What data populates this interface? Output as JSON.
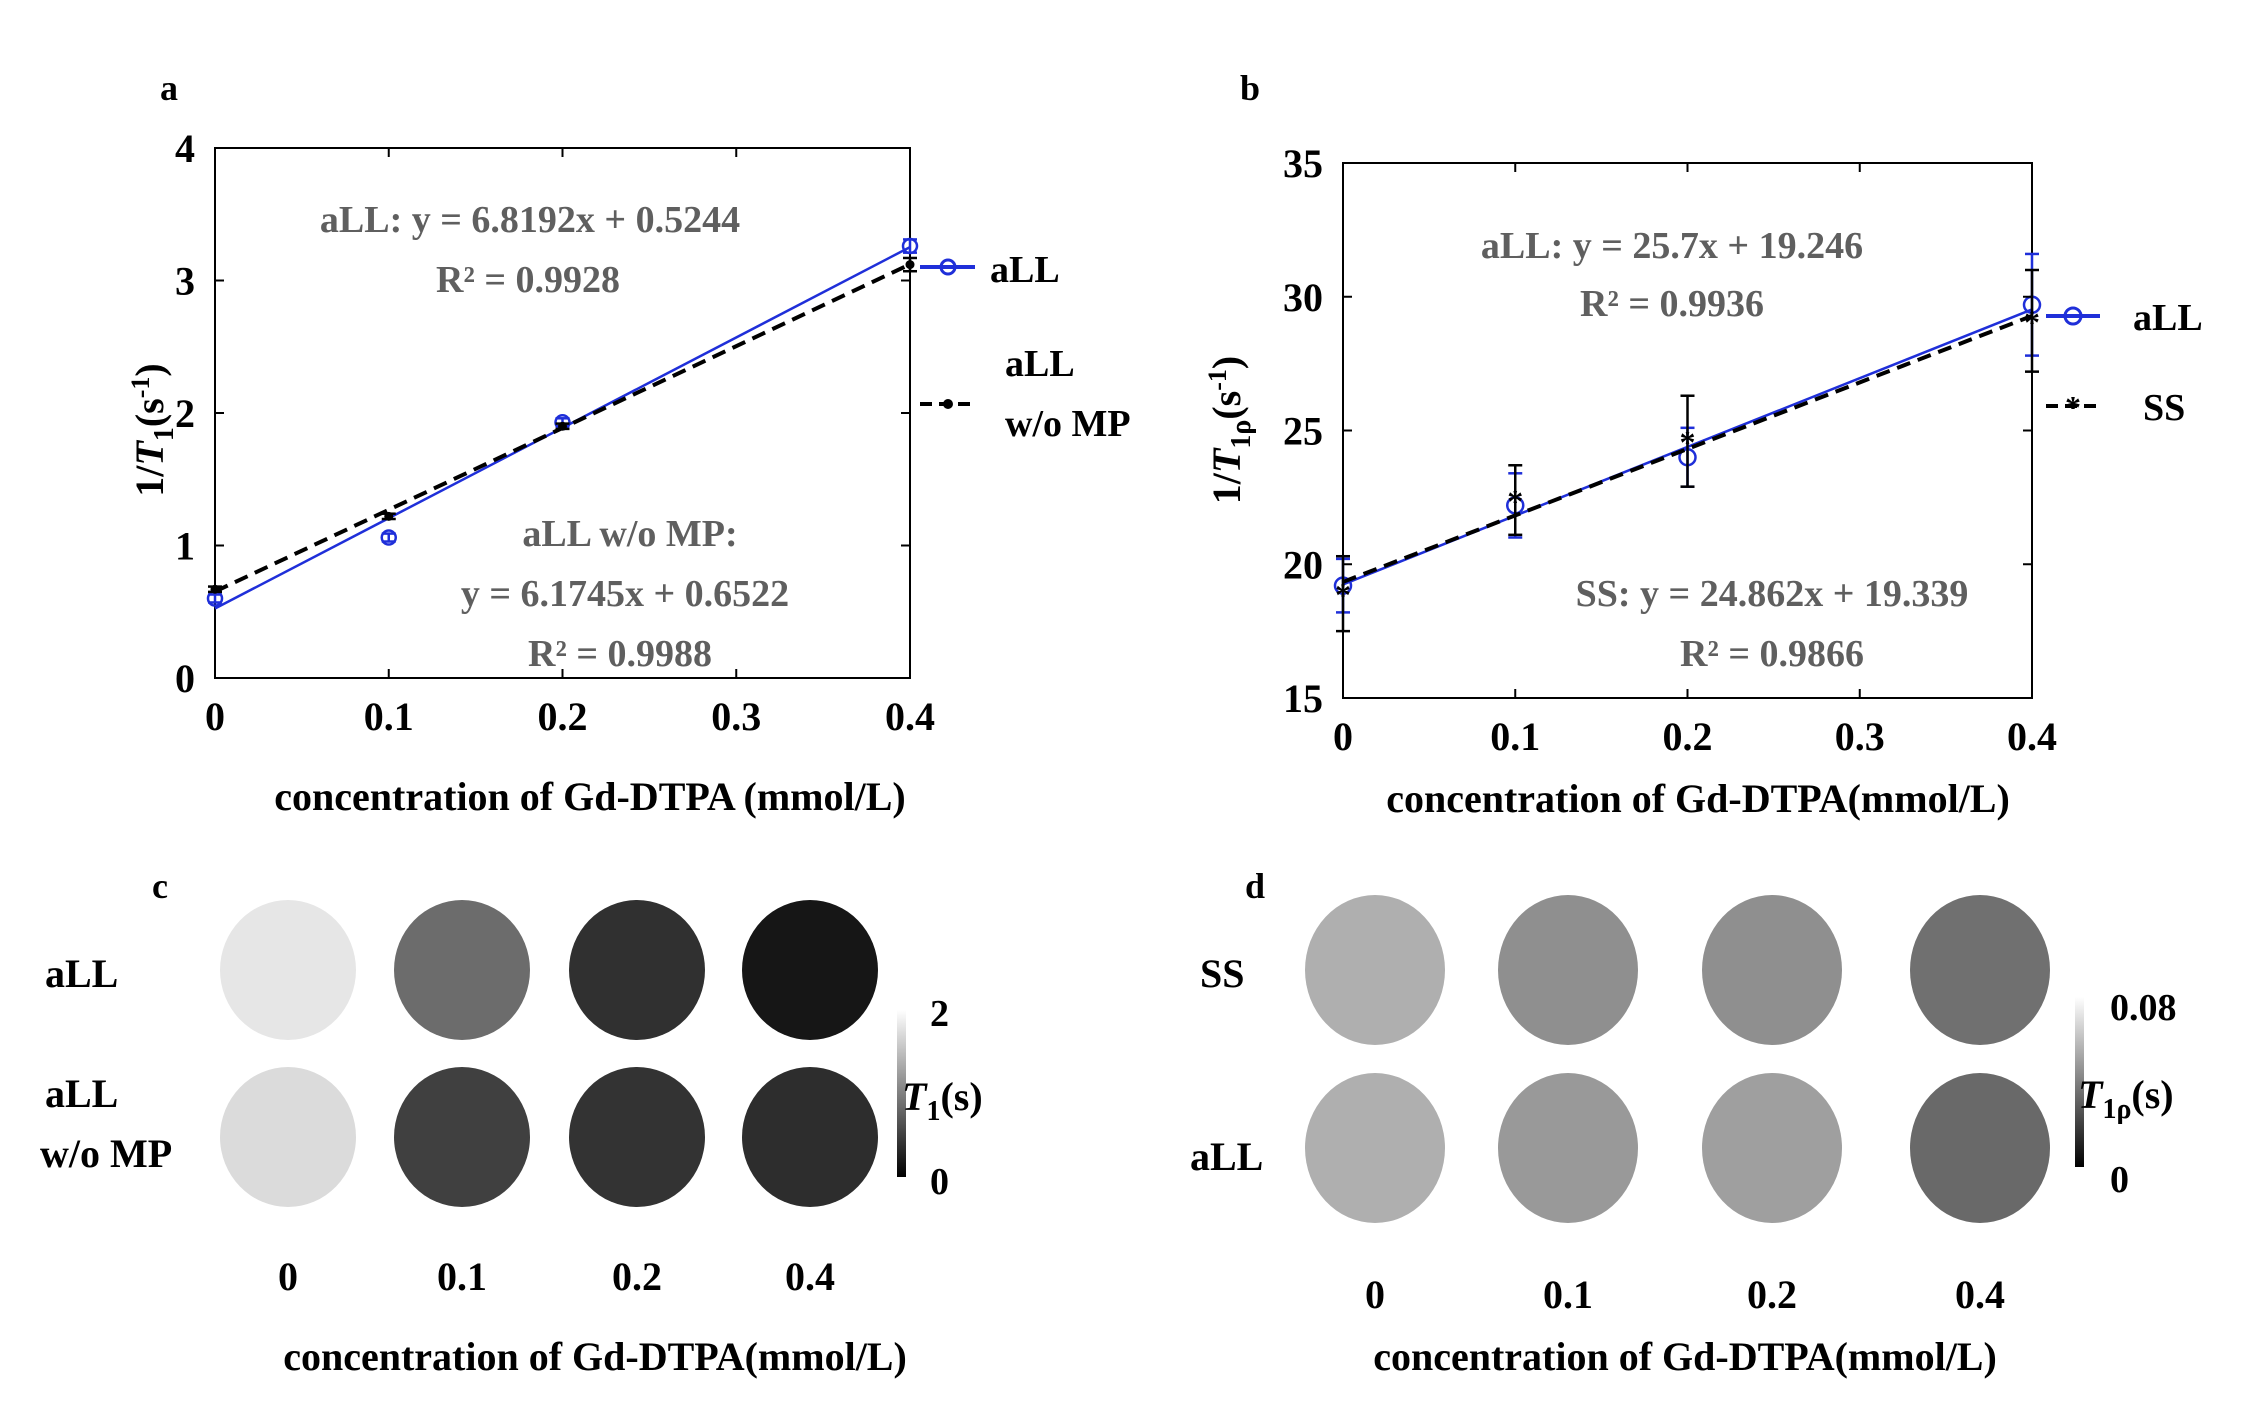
{
  "panel_labels": {
    "a": "a",
    "b": "b",
    "c": "c",
    "d": "d"
  },
  "colors": {
    "aLL": "#1f2fd9",
    "other": "#000000",
    "eq_text": "#5f5f5f",
    "axis": "#000000"
  },
  "chart_data": [
    {
      "id": "a",
      "type": "line",
      "ylabel": {
        "prefix": "1/",
        "var": "T",
        "sub": "1",
        "unit_pre": "(s",
        "unit_sup": "-1",
        "unit_post": ")"
      },
      "xlabel": "concentration of Gd-DTPA (mmol/L)",
      "xlim": [
        0,
        0.4
      ],
      "ylim": [
        0,
        4
      ],
      "xticks": [
        0,
        0.1,
        0.2,
        0.3,
        0.4
      ],
      "yticks": [
        0,
        1,
        2,
        3,
        4
      ],
      "xticklabels": [
        "0",
        "0.1",
        "0.2",
        "0.3",
        "0.4"
      ],
      "yticklabels": [
        "0",
        "1",
        "2",
        "3",
        "4"
      ],
      "series": [
        {
          "name": "aLL",
          "legend_lines": [
            "aLL"
          ],
          "x": [
            0,
            0.1,
            0.2,
            0.4
          ],
          "y": [
            0.6,
            1.06,
            1.93,
            3.26
          ],
          "err": [
            0.03,
            0.03,
            0.03,
            0.05
          ],
          "fit": {
            "slope": 6.8192,
            "intercept": 0.5244
          },
          "marker": "circle",
          "dash": "solid"
        },
        {
          "name": "aLL w/o MP",
          "legend_lines": [
            "aLL",
            "w/o MP"
          ],
          "x": [
            0,
            0.1,
            0.2,
            0.4
          ],
          "y": [
            0.67,
            1.22,
            1.9,
            3.12
          ],
          "err": [
            0.02,
            0.02,
            0.02,
            0.05
          ],
          "fit": {
            "slope": 6.1745,
            "intercept": 0.6522
          },
          "marker": "dot",
          "dash": "dashed"
        }
      ],
      "annotations": [
        {
          "id": "a-eq1",
          "text": "aLL: y = 6.8192x + 0.5244"
        },
        {
          "id": "a-r1",
          "text": "R² = 0.9928"
        },
        {
          "id": "a-eq2a",
          "text": "aLL w/o MP:"
        },
        {
          "id": "a-eq2b",
          "text": "y = 6.1745x + 0.6522"
        },
        {
          "id": "a-r2",
          "text": "R² = 0.9988"
        }
      ]
    },
    {
      "id": "b",
      "type": "line",
      "ylabel": {
        "prefix": "1/",
        "var": "T",
        "sub": "1ρ",
        "unit_pre": "(s",
        "unit_sup": "-1",
        "unit_post": ")"
      },
      "xlabel": "concentration of Gd-DTPA(mmol/L)",
      "xlim": [
        0,
        0.4
      ],
      "ylim": [
        15,
        35
      ],
      "xticks": [
        0,
        0.1,
        0.2,
        0.3,
        0.4
      ],
      "yticks": [
        15,
        20,
        25,
        30,
        35
      ],
      "xticklabels": [
        "0",
        "0.1",
        "0.2",
        "0.3",
        "0.4"
      ],
      "yticklabels": [
        "15",
        "20",
        "25",
        "30",
        "35"
      ],
      "series": [
        {
          "name": "aLL",
          "legend_lines": [
            "aLL"
          ],
          "x": [
            0,
            0.1,
            0.2,
            0.4
          ],
          "y": [
            19.2,
            22.2,
            24.0,
            29.7
          ],
          "err": [
            1.0,
            1.2,
            1.1,
            1.9
          ],
          "fit": {
            "slope": 25.7,
            "intercept": 19.246
          },
          "marker": "circle",
          "dash": "solid"
        },
        {
          "name": "SS",
          "legend_lines": [
            "SS"
          ],
          "x": [
            0,
            0.1,
            0.2,
            0.4
          ],
          "y": [
            18.9,
            22.4,
            24.6,
            29.1
          ],
          "err": [
            1.4,
            1.3,
            1.7,
            1.9
          ],
          "fit": {
            "slope": 24.862,
            "intercept": 19.339
          },
          "marker": "star",
          "dash": "dashed"
        }
      ],
      "annotations": [
        {
          "id": "b-eq1",
          "text": "aLL:  y = 25.7x + 19.246"
        },
        {
          "id": "b-r1",
          "text": "R² = 0.9936"
        },
        {
          "id": "b-eq2",
          "text": "SS: y = 24.862x + 19.339"
        },
        {
          "id": "b-r2",
          "text": "R² = 0.9866"
        }
      ]
    }
  ],
  "maps": {
    "c": {
      "rows": [
        {
          "label_lines": [
            "aLL"
          ],
          "values": [
            1.8,
            0.85,
            0.38,
            0.17
          ]
        },
        {
          "label_lines": [
            "aLL",
            "w/o MP"
          ],
          "values": [
            1.72,
            0.5,
            0.4,
            0.35
          ]
        }
      ],
      "colorbar": {
        "var": "T",
        "sub": "1",
        "unit": "(s)",
        "max_label": "2",
        "min_label": "0",
        "vmin": 0,
        "vmax": 2
      },
      "xticklabels": [
        "0",
        "0.1",
        "0.2",
        "0.4"
      ],
      "xlabel": "concentration of Gd-DTPA(mmol/L)"
    },
    "d": {
      "rows": [
        {
          "label_lines": [
            "SS"
          ],
          "values": [
            0.055,
            0.045,
            0.045,
            0.035
          ]
        },
        {
          "label_lines": [
            "aLL"
          ],
          "values": [
            0.055,
            0.048,
            0.05,
            0.033
          ]
        }
      ],
      "colorbar": {
        "var": "T",
        "sub": "1ρ",
        "unit": "(s)",
        "max_label": "0.08",
        "min_label": "0",
        "vmin": 0,
        "vmax": 0.08
      },
      "xticklabels": [
        "0",
        "0.1",
        "0.2",
        "0.4"
      ],
      "xlabel": "concentration of Gd-DTPA(mmol/L)"
    }
  }
}
